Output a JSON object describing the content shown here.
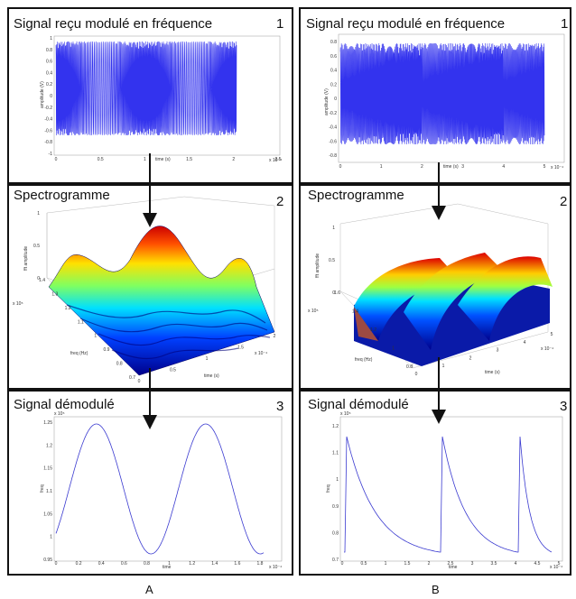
{
  "columns": [
    {
      "label": "A",
      "rows": [
        {
          "title": "Signal reçu modulé en fréquence",
          "number": "1",
          "ylabel": "amplitude (V)",
          "xlabel": "time (s)",
          "exp": "x 10⁻⁴",
          "yticks": [
            "1",
            "0.8",
            "0.6",
            "0.4",
            "0.2",
            "0",
            "-0.2",
            "-0.4",
            "-0.6",
            "-0.8",
            "-1"
          ],
          "xticks": [
            "0",
            "0.5",
            "1",
            "1.5",
            "2",
            "2.5"
          ]
        },
        {
          "title": "Spectrogramme",
          "number": "2",
          "zlabel": "fft amplitude",
          "ylabel": "freq (Hz)",
          "xlabel": "time (s)",
          "zticks": [
            "1",
            "0.5",
            "0"
          ],
          "yticks": [
            "1.4",
            "1.3",
            "1.2",
            "1.1",
            "1",
            "0.9",
            "0.8",
            "0.7"
          ],
          "yexp": "x 10⁵",
          "xticks": [
            "0",
            "0.5",
            "1",
            "1.5",
            "2"
          ],
          "xexp": "x 10⁻⁴"
        },
        {
          "title": "Signal démodulé",
          "number": "3",
          "ylabel": "freq",
          "xlabel": "time",
          "exp": "x 10⁵",
          "xexp": "x 10⁻⁴",
          "yticks": [
            "1.25",
            "1.2",
            "1.15",
            "1.1",
            "1.05",
            "1",
            "0.95"
          ],
          "xticks": [
            "0",
            "0.2",
            "0.4",
            "0.6",
            "0.8",
            "1",
            "1.2",
            "1.4",
            "1.6",
            "1.8"
          ]
        }
      ]
    },
    {
      "label": "B",
      "rows": [
        {
          "title": "Signal reçu modulé en fréquence",
          "number": "1",
          "ylabel": "amplitude (V)",
          "xlabel": "time (s)",
          "exp": "x 10⁻⁴",
          "yticks": [
            "0.8",
            "0.6",
            "0.4",
            "0.2",
            "0",
            "-0.2",
            "-0.4",
            "-0.6",
            "-0.8"
          ],
          "xticks": [
            "0",
            "1",
            "2",
            "3",
            "4",
            "5"
          ]
        },
        {
          "title": "Spectrogramme",
          "number": "2",
          "zlabel": "fft amplitude",
          "ylabel": "freq (Hz)",
          "xlabel": "time (s)",
          "zticks": [
            "1",
            "0.5",
            "0"
          ],
          "yticks": [
            "1.6",
            "1.4",
            "1.2",
            "1",
            "0.8"
          ],
          "yexp": "x 10⁵",
          "xticks": [
            "0",
            "1",
            "2",
            "3",
            "4",
            "5"
          ],
          "xexp": "x 10⁻⁴"
        },
        {
          "title": "Signal démodulé",
          "number": "3",
          "ylabel": "freq",
          "xlabel": "time",
          "exp": "x 10⁵",
          "xexp": "x 10⁻⁴",
          "yticks": [
            "1.2",
            "1.1",
            "1",
            "0.9",
            "0.8",
            "0.7"
          ],
          "xticks": [
            "0",
            "0.5",
            "1",
            "1.5",
            "2",
            "2.5",
            "3",
            "3.5",
            "4",
            "4.5",
            "5"
          ]
        }
      ]
    }
  ],
  "colors": {
    "waveform": "#3333ee",
    "demod": "#3a3ad0",
    "arrow": "#111111"
  }
}
